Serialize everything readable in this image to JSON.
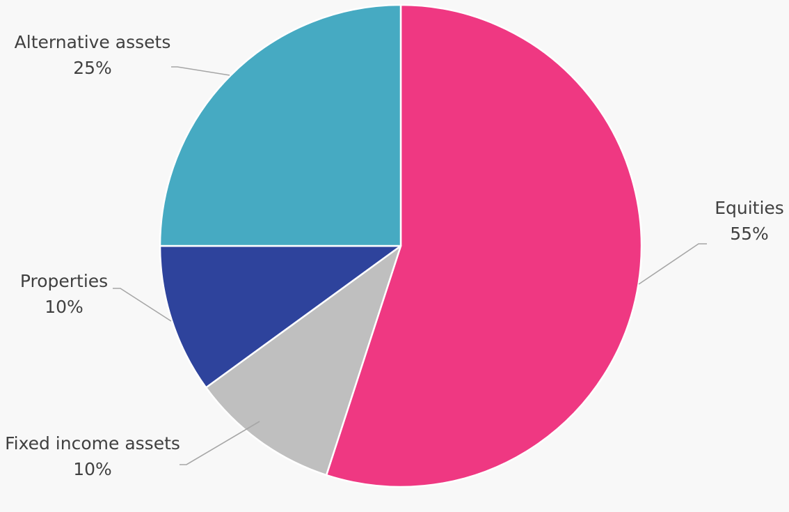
{
  "chart_data": {
    "type": "pie",
    "start_angle_deg": 0,
    "direction": "clockwise",
    "legend": "none",
    "slices": [
      {
        "name": "Equities",
        "value": 55,
        "label": "55%",
        "color": "#ef3882"
      },
      {
        "name": "Fixed income assets",
        "value": 10,
        "label": "10%",
        "color": "#bfbfbf"
      },
      {
        "name": "Properties",
        "value": 10,
        "label": "10%",
        "color": "#2e439c"
      },
      {
        "name": "Alternative assets",
        "value": 25,
        "label": "25%",
        "color": "#46aac2"
      }
    ]
  }
}
